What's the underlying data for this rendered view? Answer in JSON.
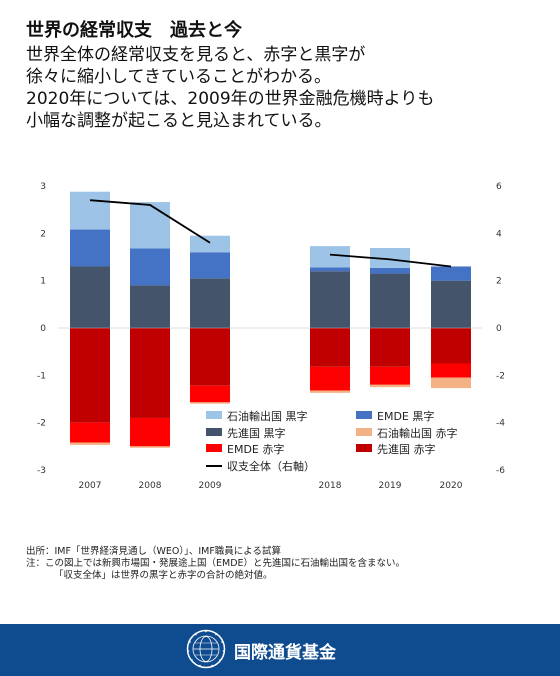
{
  "header": {
    "title": "世界の経常収支　過去と今",
    "subtitle_lines": [
      "世界全体の経常収支を見ると、赤字と黒字が",
      "徐々に縮小してきていることがわかる。",
      "2020年については、2009年の世界金融危機時よりも",
      "小幅な調整が起こると見込まれている。"
    ]
  },
  "chart_data": {
    "type": "bar",
    "stacked": true,
    "categories": [
      "2007",
      "2008",
      "2009",
      "2018",
      "2019",
      "2020"
    ],
    "y_left": {
      "lim": [
        -3,
        3
      ],
      "ticks": [
        "3",
        "2",
        "1",
        "0",
        "-1",
        "-2",
        "-3"
      ]
    },
    "y_right": {
      "lim": [
        -6,
        6
      ],
      "ticks": [
        "6",
        "4",
        "2",
        "0",
        "-2",
        "-4",
        "-6"
      ]
    },
    "series": [
      {
        "name": "先進国 黒字",
        "color": "#44546a",
        "values": [
          1.3,
          0.9,
          1.05,
          1.2,
          1.15,
          1.0
        ]
      },
      {
        "name": "EMDE 黒字",
        "color": "#4472c4",
        "values": [
          0.78,
          0.78,
          0.55,
          0.08,
          0.12,
          0.3
        ]
      },
      {
        "name": "石油輸出国 黒字",
        "color": "#9dc3e6",
        "values": [
          0.8,
          0.98,
          0.35,
          0.45,
          0.42,
          0.0
        ]
      },
      {
        "name": "先進国 赤字",
        "color": "#c00000",
        "values": [
          -2.0,
          -1.9,
          -1.22,
          -0.82,
          -0.82,
          -0.75
        ]
      },
      {
        "name": "EMDE 赤字",
        "color": "#ff0000",
        "values": [
          -0.42,
          -0.6,
          -0.35,
          -0.5,
          -0.38,
          -0.3
        ]
      },
      {
        "name": "石油輸出国 赤字",
        "color": "#f4b183",
        "values": [
          -0.05,
          -0.03,
          -0.03,
          -0.05,
          -0.05,
          -0.22
        ]
      }
    ],
    "line": {
      "name": "収支全体（右軸）",
      "axis": "right",
      "color": "#000000",
      "segments": [
        {
          "x": [
            "2007",
            "2008",
            "2009"
          ],
          "values": [
            5.4,
            5.2,
            3.6
          ]
        },
        {
          "x": [
            "2018",
            "2019",
            "2020"
          ],
          "values": [
            3.1,
            2.9,
            2.6
          ]
        }
      ]
    },
    "legend": {
      "position": "bottom-center",
      "items": [
        {
          "label": "石油輸出国 黒字",
          "color": "#9dc3e6",
          "kind": "box"
        },
        {
          "label": "EMDE 黒字",
          "color": "#4472c4",
          "kind": "box"
        },
        {
          "label": "先進国 黒字",
          "color": "#44546a",
          "kind": "box"
        },
        {
          "label": "石油輸出国 赤字",
          "color": "#f4b183",
          "kind": "box"
        },
        {
          "label": "EMDE 赤字",
          "color": "#ff0000",
          "kind": "box"
        },
        {
          "label": "先進国 赤字",
          "color": "#c00000",
          "kind": "box"
        },
        {
          "label": "収支全体（右軸）",
          "color": "#000000",
          "kind": "line"
        }
      ]
    },
    "grid": false
  },
  "notes": {
    "source": "出所：IMF「世界経済見通し（WEO）」、IMF職員による試算",
    "note1": "注：この図上では新興市場国・発展途上国（EMDE）と先進国に石油輸出国を含まない。",
    "note2": "「収支全体」は世界の黒字と赤字の合計の絶対値。"
  },
  "footer": {
    "label": "国際通貨基金",
    "brand_color": "#0f4b8f"
  }
}
